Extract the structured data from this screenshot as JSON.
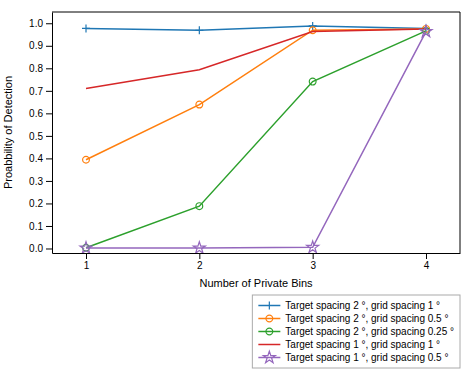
{
  "chart_data": {
    "type": "line",
    "xlabel": "Number of Private Bins",
    "ylabel": "Proabbility of Detection",
    "x": [
      1,
      2,
      3,
      4
    ],
    "series": [
      {
        "name": "Target spacing 2 °, grid spacing 1 °",
        "values": [
          0.977,
          0.969,
          0.988,
          0.977
        ],
        "marker": "plus"
      },
      {
        "name": "Target spacing 2 °, grid spacing 0.5 °",
        "values": [
          0.394,
          0.639,
          0.969,
          0.975
        ],
        "marker": "circle"
      },
      {
        "name": "Target spacing 2 °, grid spacing 0.25 °",
        "values": [
          0.003,
          0.188,
          0.741,
          0.966
        ],
        "marker": "circle"
      },
      {
        "name": "Target spacing 1 °, grid spacing 1 °",
        "values": [
          0.71,
          0.794,
          0.963,
          0.975
        ],
        "marker": "none"
      },
      {
        "name": "Target spacing 1 °, grid spacing 0.5 °",
        "values": [
          0.002,
          0.002,
          0.005,
          0.963
        ],
        "marker": "star"
      }
    ],
    "xlim": [
      0.7,
      4.3
    ],
    "ylim": [
      -0.02,
      1.05
    ],
    "xticks": [
      1,
      2,
      3,
      4
    ],
    "yticks": [
      {
        "value": 0,
        "label": "0.0"
      },
      0.1,
      0.2,
      0.3,
      0.4,
      0.5,
      0.6,
      0.7,
      0.8,
      0.9,
      {
        "value": 1,
        "label": "1.0"
      }
    ],
    "legend": "lower right"
  }
}
